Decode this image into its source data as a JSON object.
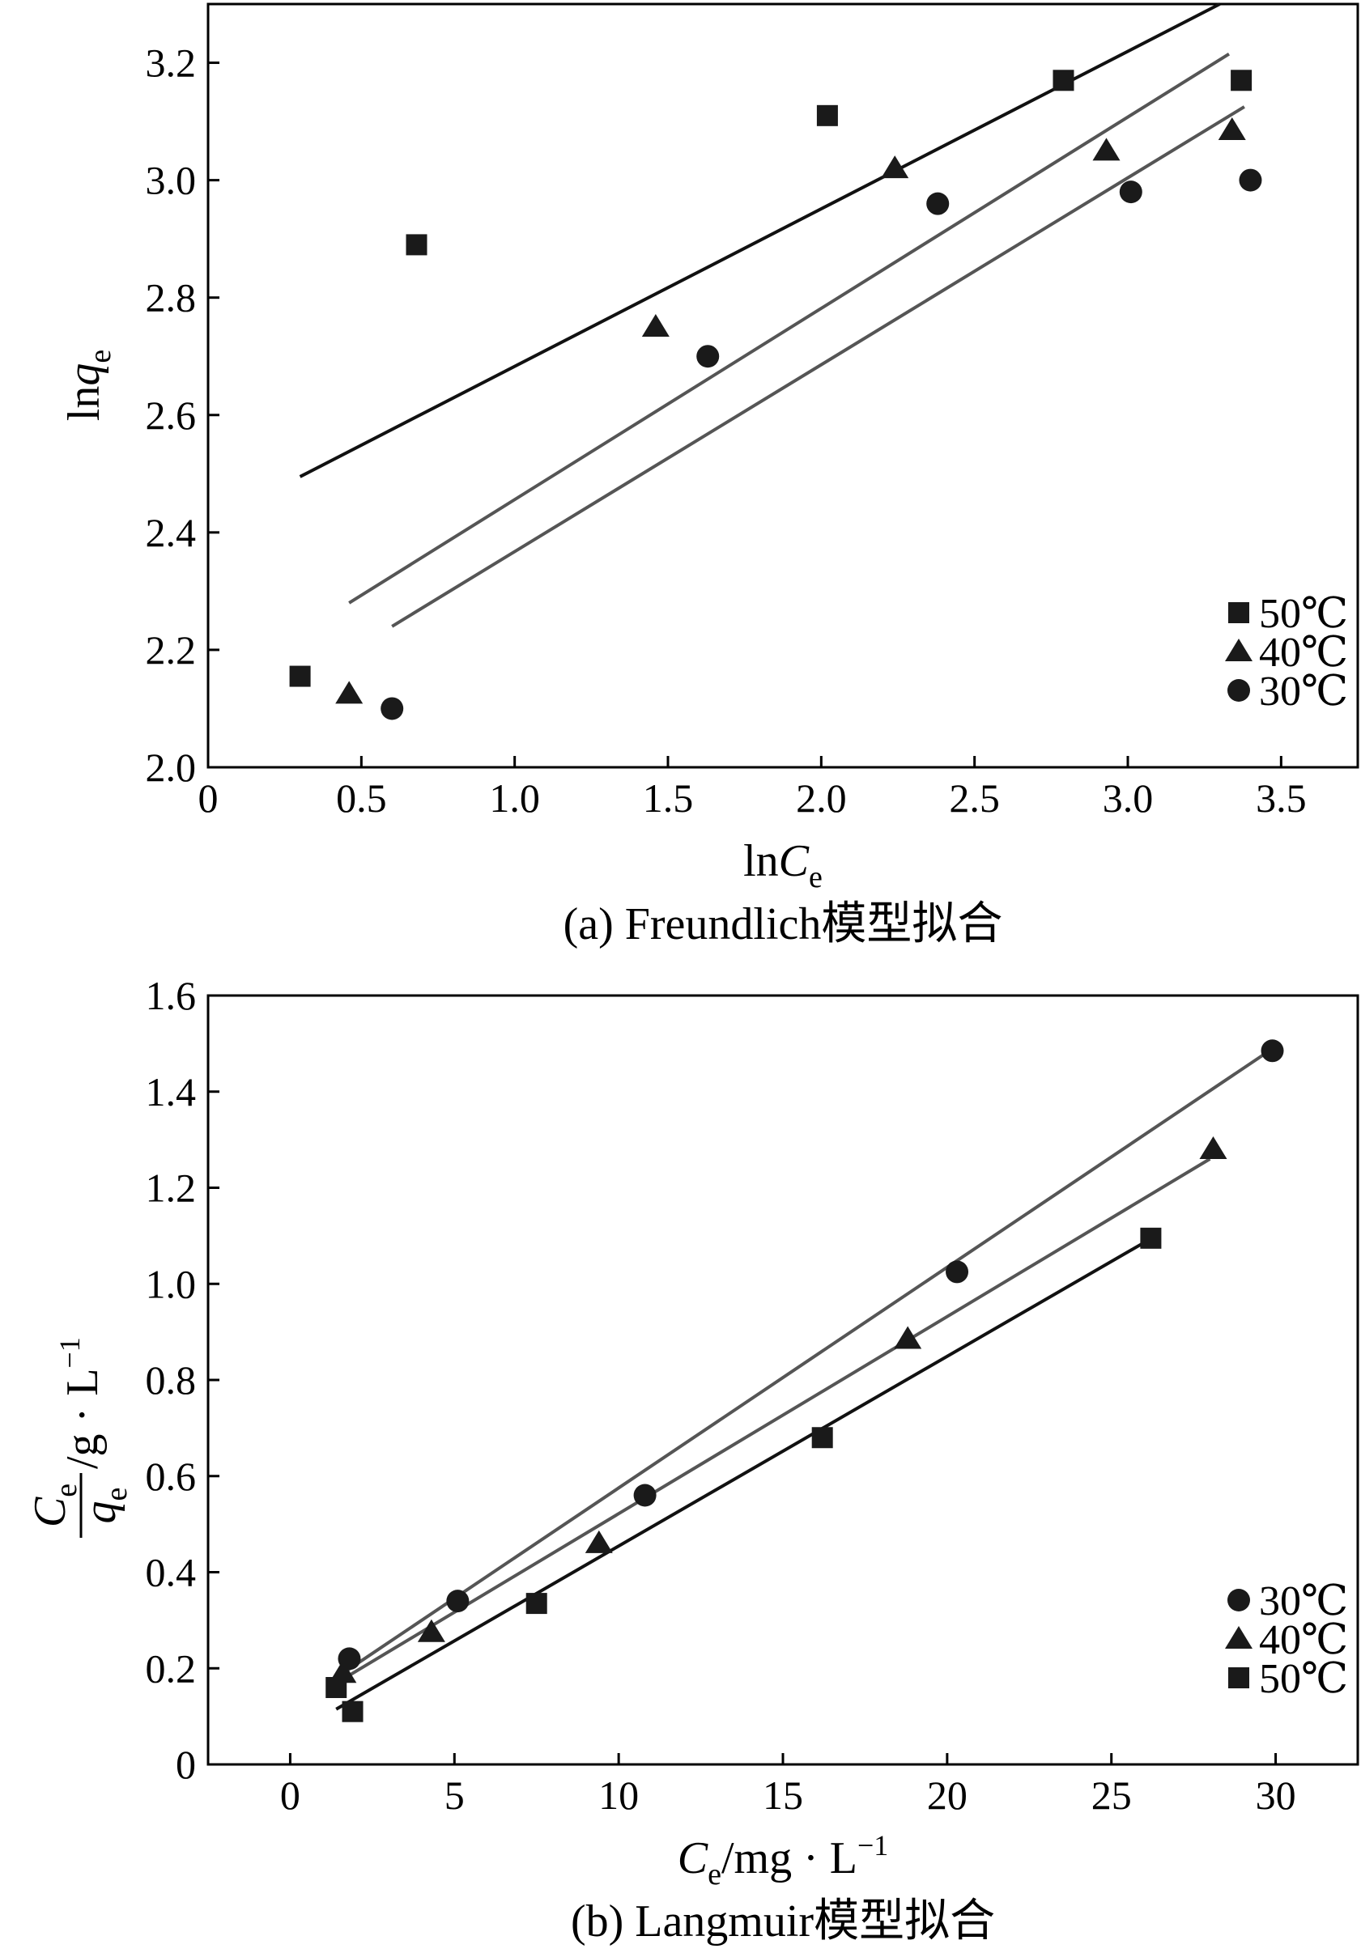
{
  "chart_data": [
    {
      "type": "scatter",
      "caption": "(a) Freundlich模型拟合",
      "xlabel": {
        "main": "ln",
        "var": "C",
        "sub": "e"
      },
      "ylabel": {
        "main": "ln",
        "var": "q",
        "sub": "e"
      },
      "xlim": [
        0,
        3.75
      ],
      "ylim": [
        2.0,
        3.3
      ],
      "xticks": [
        0,
        0.5,
        1.0,
        1.5,
        2.0,
        2.5,
        3.0,
        3.5
      ],
      "xtick_labels": [
        "0",
        "0.5",
        "1.0",
        "1.5",
        "2.0",
        "2.5",
        "3.0",
        "3.5"
      ],
      "yticks": [
        2.0,
        2.2,
        2.4,
        2.6,
        2.8,
        3.0,
        3.2
      ],
      "ytick_labels": [
        "2.0",
        "2.2",
        "2.4",
        "2.6",
        "2.8",
        "3.0",
        "3.2"
      ],
      "grid": false,
      "legend_position": "lower-right",
      "series": [
        {
          "name": "50℃",
          "marker": "square",
          "color": "#1a1a1a",
          "x": [
            0.3,
            0.68,
            2.02,
            2.79,
            3.37
          ],
          "y": [
            2.155,
            2.89,
            3.11,
            3.17,
            3.17
          ],
          "fit": {
            "x": [
              0.3,
              3.3
            ],
            "y": [
              2.495,
              3.3
            ]
          }
        },
        {
          "name": "40℃",
          "marker": "triangle",
          "color": "#1a1a1a",
          "x": [
            0.46,
            1.46,
            2.24,
            2.93,
            3.34
          ],
          "y": [
            2.125,
            2.75,
            3.02,
            3.05,
            3.085
          ],
          "fit": {
            "x": [
              0.46,
              3.33
            ],
            "y": [
              2.28,
              3.215
            ]
          }
        },
        {
          "name": "30℃",
          "marker": "circle",
          "color": "#1a1a1a",
          "x": [
            0.6,
            1.63,
            2.38,
            3.01,
            3.4
          ],
          "y": [
            2.1,
            2.7,
            2.96,
            2.98,
            3.0
          ],
          "fit": {
            "x": [
              0.6,
              3.38
            ],
            "y": [
              2.24,
              3.125
            ]
          }
        }
      ],
      "fit_colors": [
        "#111111",
        "#555555",
        "#555555"
      ]
    },
    {
      "type": "scatter",
      "caption": "(b) Langmuir模型拟合",
      "xlabel": {
        "var": "C",
        "sub": "e",
        "unit": "/mg · L",
        "sup": "−1"
      },
      "ylabel": {
        "num_var": "C",
        "num_sub": "e",
        "den_var": "q",
        "den_sub": "e",
        "unit": "/g · L",
        "sup": "−1"
      },
      "xlim": [
        -2.5,
        32.5
      ],
      "ylim": [
        0,
        1.6
      ],
      "xticks": [
        0,
        5,
        10,
        15,
        20,
        25,
        30
      ],
      "xtick_labels": [
        "0",
        "5",
        "10",
        "15",
        "20",
        "25",
        "30"
      ],
      "yticks": [
        0,
        0.2,
        0.4,
        0.6,
        0.8,
        1.0,
        1.2,
        1.4,
        1.6
      ],
      "ytick_labels": [
        "0",
        "0.2",
        "0.4",
        "0.6",
        "0.8",
        "1.0",
        "1.2",
        "1.4",
        "1.6"
      ],
      "grid": false,
      "legend_position": "lower-right",
      "series": [
        {
          "name": "30℃",
          "marker": "circle",
          "color": "#1a1a1a",
          "x": [
            1.8,
            5.1,
            10.8,
            20.3,
            29.9
          ],
          "y": [
            0.22,
            0.34,
            0.56,
            1.025,
            1.485
          ],
          "fit": {
            "x": [
              1.5,
              29.7
            ],
            "y": [
              0.185,
              1.48
            ]
          }
        },
        {
          "name": "40℃",
          "marker": "triangle",
          "color": "#1a1a1a",
          "x": [
            1.6,
            4.3,
            9.4,
            18.8,
            28.1
          ],
          "y": [
            0.19,
            0.275,
            0.46,
            0.885,
            1.28
          ],
          "fit": {
            "x": [
              1.3,
              28.0
            ],
            "y": [
              0.165,
              1.26
            ]
          }
        },
        {
          "name": "50℃",
          "marker": "square",
          "color": "#1a1a1a",
          "x": [
            1.4,
            1.9,
            7.5,
            16.2,
            26.2
          ],
          "y": [
            0.16,
            0.11,
            0.335,
            0.68,
            1.095
          ],
          "fit": {
            "x": [
              1.4,
              26.1
            ],
            "y": [
              0.115,
              1.09
            ]
          }
        }
      ],
      "fit_colors": [
        "#555555",
        "#555555",
        "#111111"
      ]
    }
  ]
}
